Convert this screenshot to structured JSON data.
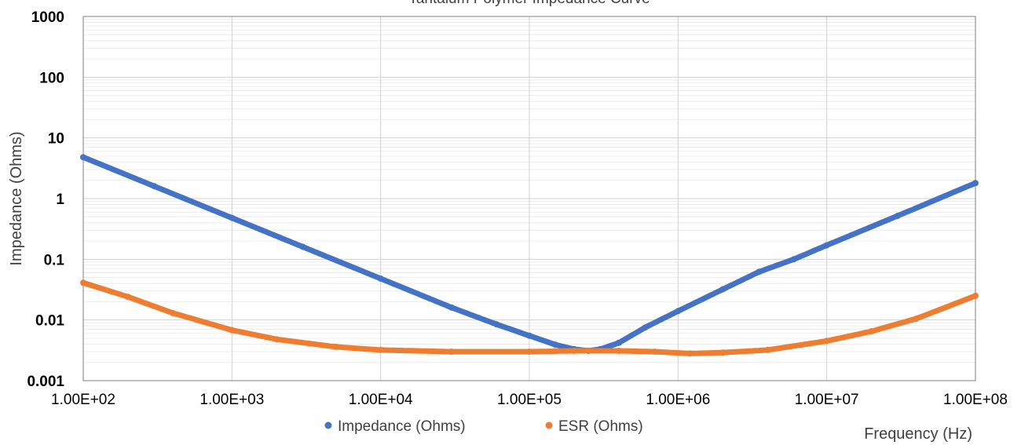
{
  "chart_data": {
    "type": "scatter",
    "title": "Tantalum Polymer Impedance Curve",
    "xlabel": "Frequency (Hz)",
    "ylabel": "Impedance (Ohms)",
    "x_scale": "log",
    "y_scale": "log",
    "xlim": [
      100,
      100000000
    ],
    "ylim": [
      0.001,
      1000
    ],
    "x_ticks": [
      "1.00E+02",
      "1.00E+03",
      "1.00E+04",
      "1.00E+05",
      "1.00E+06",
      "1.00E+07",
      "1.00E+08"
    ],
    "y_ticks": [
      "0.001",
      "0.01",
      "0.1",
      "1",
      "10",
      "100",
      "1000"
    ],
    "grid": true,
    "legend_position": "bottom",
    "series": [
      {
        "name": "Impedance (Ohms)",
        "color": "#4472c4",
        "points": [
          [
            100,
            4.8
          ],
          [
            300,
            1.6
          ],
          [
            1000,
            0.48
          ],
          [
            3000,
            0.16
          ],
          [
            10000,
            0.048
          ],
          [
            30000,
            0.016
          ],
          [
            60000,
            0.0085
          ],
          [
            100000,
            0.0055
          ],
          [
            150000,
            0.0039
          ],
          [
            200000,
            0.0033
          ],
          [
            250000,
            0.0031
          ],
          [
            300000,
            0.0033
          ],
          [
            400000,
            0.0042
          ],
          [
            600000,
            0.0075
          ],
          [
            1000000,
            0.014
          ],
          [
            2000000,
            0.032
          ],
          [
            3500000,
            0.062
          ],
          [
            6000000,
            0.1
          ],
          [
            10000000,
            0.17
          ],
          [
            30000000,
            0.52
          ],
          [
            100000000,
            1.8
          ]
        ]
      },
      {
        "name": "ESR (Ohms)",
        "color": "#ed7d31",
        "points": [
          [
            100,
            0.041
          ],
          [
            200,
            0.024
          ],
          [
            400,
            0.013
          ],
          [
            1000,
            0.0068
          ],
          [
            2000,
            0.0048
          ],
          [
            5000,
            0.0036
          ],
          [
            10000,
            0.0032
          ],
          [
            30000,
            0.003
          ],
          [
            100000,
            0.003
          ],
          [
            200000,
            0.0031
          ],
          [
            400000,
            0.0031
          ],
          [
            700000,
            0.003
          ],
          [
            1200000,
            0.0028
          ],
          [
            2000000,
            0.0029
          ],
          [
            4000000,
            0.0032
          ],
          [
            10000000,
            0.0045
          ],
          [
            20000000,
            0.0065
          ],
          [
            40000000,
            0.0105
          ],
          [
            100000000,
            0.025
          ]
        ]
      }
    ]
  }
}
